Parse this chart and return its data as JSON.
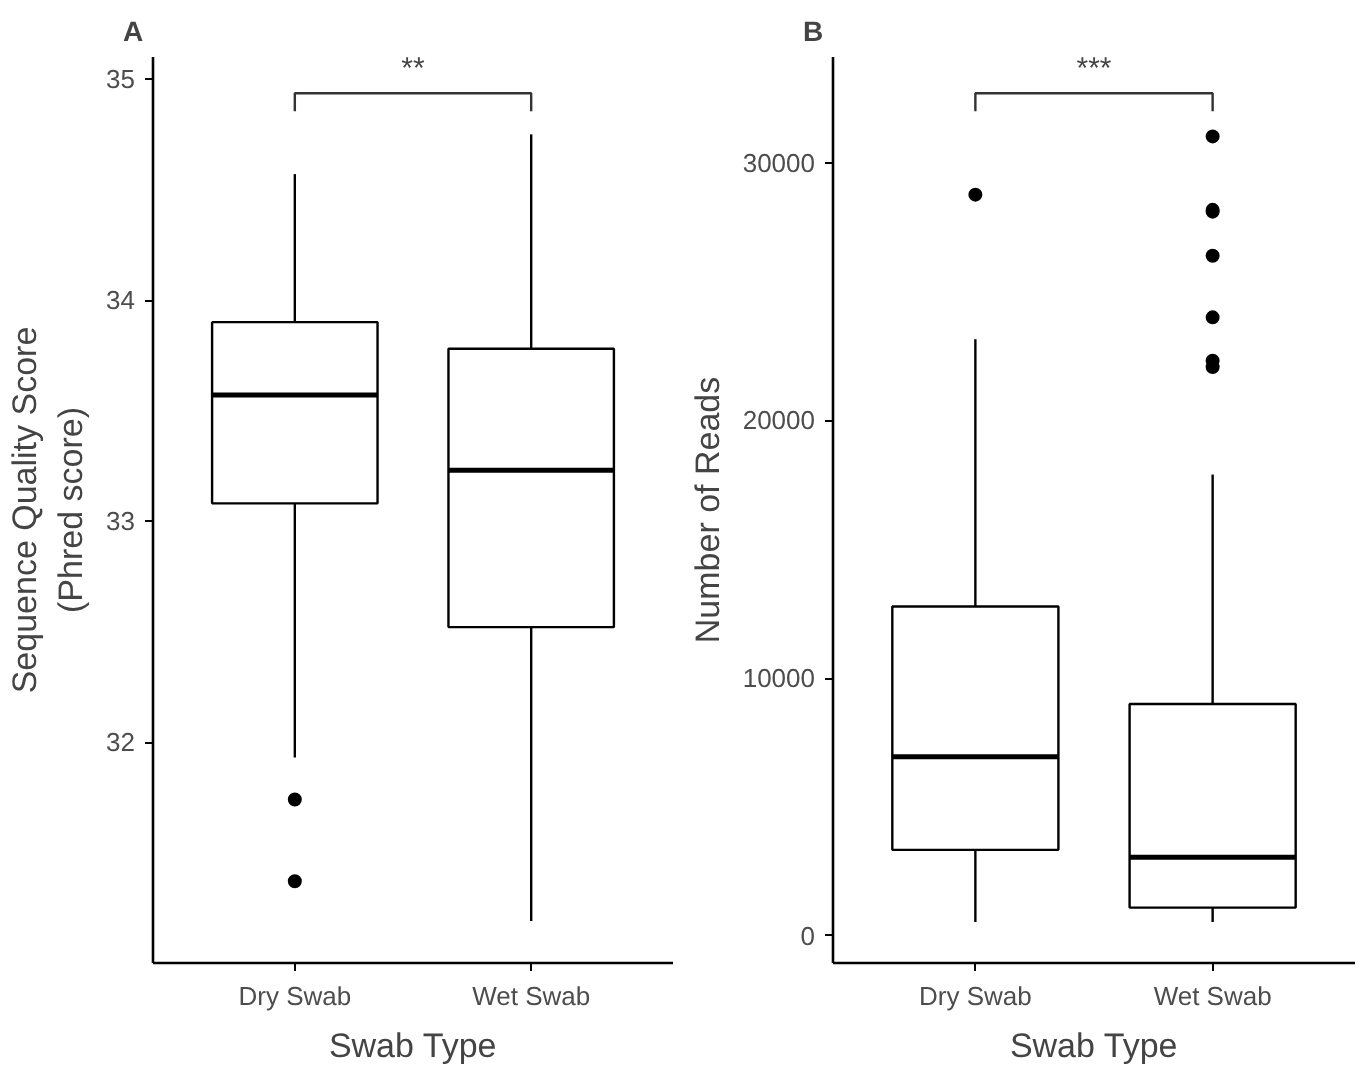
{
  "chart_data": [
    {
      "type": "box",
      "title": "A",
      "categories": [
        "Dry Swab",
        "Wet Swab"
      ],
      "xlabel": "Swab Type",
      "ylabel": "Sequence Quality Score\n(Phred score)",
      "ylim": [
        31.0,
        35.1
      ],
      "yticks": [
        32,
        33,
        34,
        35
      ],
      "grid": false,
      "annotations": [
        "**"
      ],
      "boxes": [
        {
          "low": 31.93,
          "q1": 33.08,
          "median": 33.57,
          "q3": 33.9,
          "high": 34.57,
          "outliers": [
            31.74,
            31.37
          ]
        },
        {
          "low": 31.19,
          "q1": 32.52,
          "median": 33.23,
          "q3": 33.78,
          "high": 34.75
        }
      ]
    },
    {
      "type": "box",
      "title": "B",
      "categories": [
        "Dry Swab",
        "Wet Swab"
      ],
      "xlabel": "Swab Type",
      "ylabel": "Number of Reads",
      "ylim": [
        -1050,
        34100
      ],
      "yticks": [
        0,
        10000,
        20000,
        30000
      ],
      "grid": false,
      "annotations": [
        "***"
      ],
      "boxes": [
        {
          "low": 540,
          "q1": 3340,
          "median": 6950,
          "q3": 12780,
          "high": 23150,
          "outliers": [
            28760
          ]
        },
        {
          "low": 540,
          "q1": 1100,
          "median": 3050,
          "q3": 9000,
          "high": 17900,
          "outliers": [
            31020,
            28170,
            28100,
            26390,
            24000,
            22320,
            22070
          ]
        }
      ]
    }
  ]
}
